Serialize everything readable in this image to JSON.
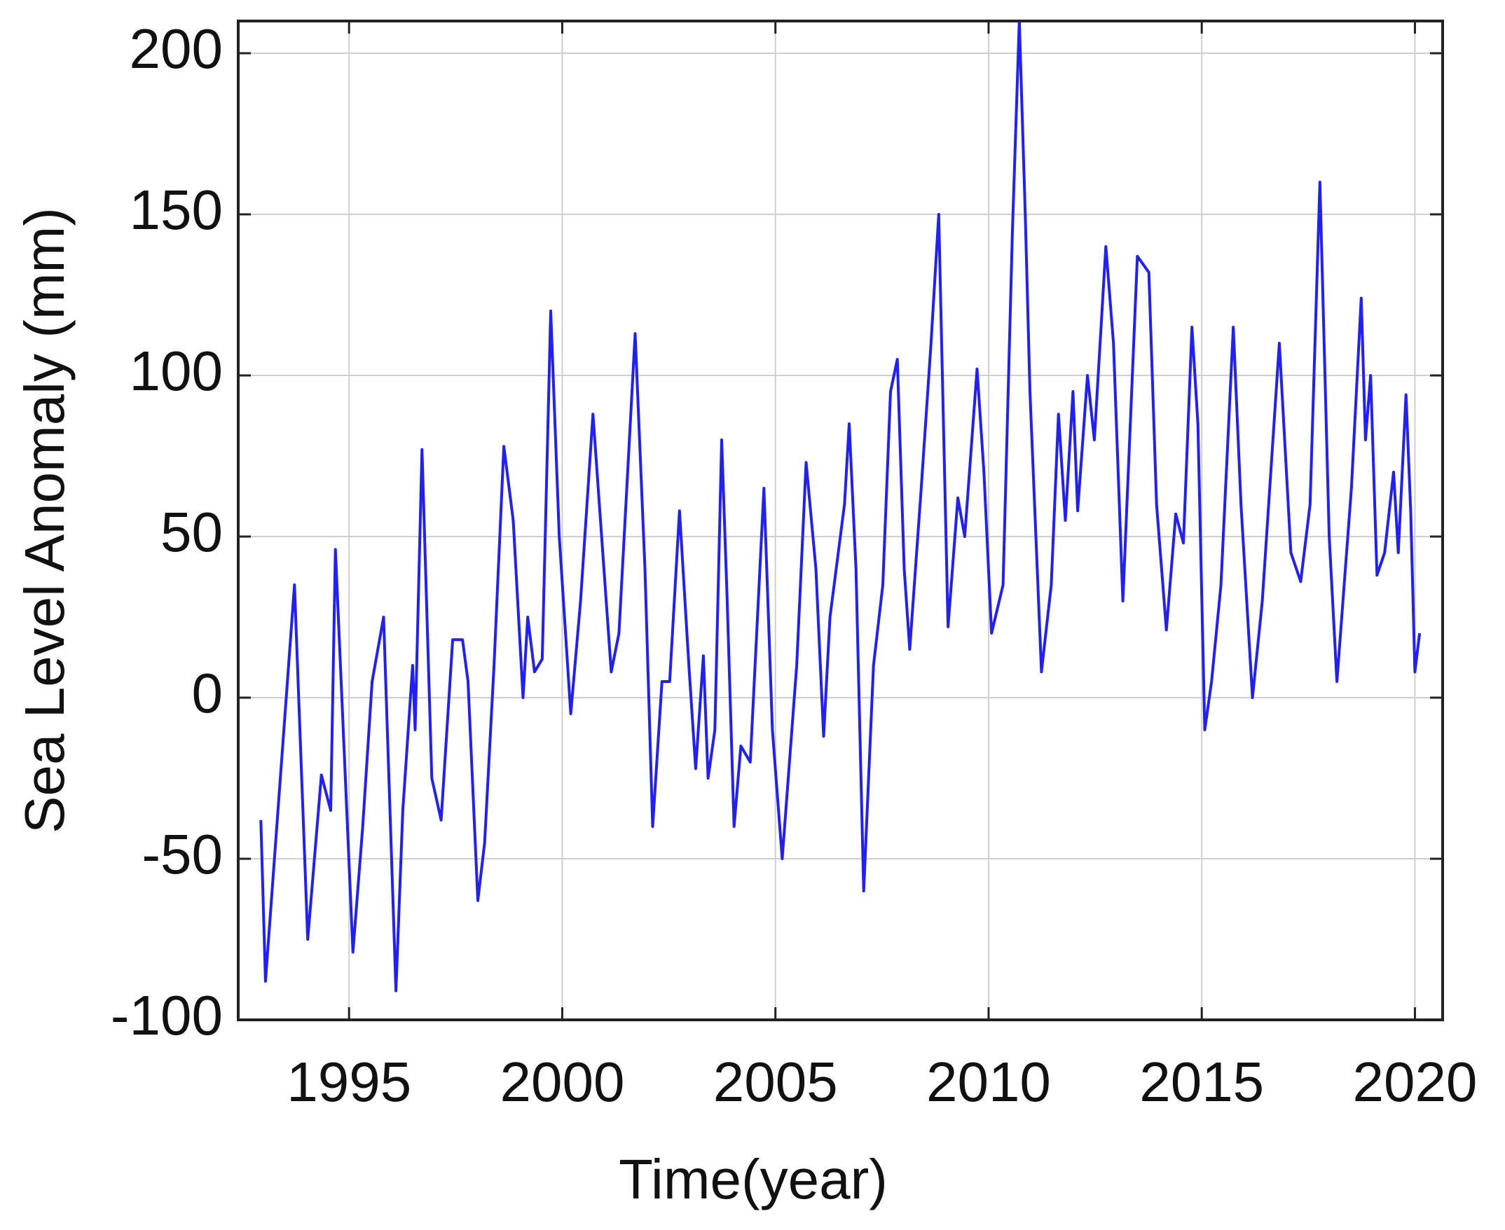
{
  "chart_data": {
    "type": "line",
    "x_label": "Time(year)",
    "y_label": "Sea Level Anomaly (mm)",
    "xlim": [
      1992.4,
      2020.65
    ],
    "ylim": [
      -100,
      210
    ],
    "xticks": [
      1995,
      2000,
      2005,
      2010,
      2015,
      2020
    ],
    "yticks": [
      -100,
      -50,
      0,
      50,
      100,
      150,
      200
    ],
    "grid": true,
    "series": [
      {
        "color": "#1f1fff",
        "x": [
          1992.93,
          1993.04,
          1993.72,
          1994.03,
          1994.35,
          1994.57,
          1994.68,
          1995.09,
          1995.32,
          1995.54,
          1995.81,
          1996.1,
          1996.26,
          1996.49,
          1996.55,
          1996.71,
          1996.94,
          1997.16,
          1997.43,
          1997.66,
          1997.79,
          1998.02,
          1998.18,
          1998.4,
          1998.63,
          1998.85,
          1999.08,
          1999.19,
          1999.35,
          1999.53,
          1999.73,
          1999.93,
          2000.2,
          2000.43,
          2000.72,
          2000.95,
          2001.15,
          2001.33,
          2001.71,
          2001.94,
          2002.12,
          2002.34,
          2002.52,
          2002.75,
          2002.97,
          2003.13,
          2003.31,
          2003.42,
          2003.58,
          2003.74,
          2003.87,
          2004.03,
          2004.19,
          2004.41,
          2004.73,
          2004.93,
          2005.16,
          2005.5,
          2005.72,
          2005.95,
          2006.13,
          2006.28,
          2006.62,
          2006.73,
          2006.89,
          2007.07,
          2007.3,
          2007.52,
          2007.7,
          2007.86,
          2008.02,
          2008.15,
          2008.42,
          2008.65,
          2008.83,
          2009.05,
          2009.28,
          2009.44,
          2009.73,
          2009.89,
          2010.07,
          2010.34,
          2010.56,
          2010.72,
          2010.86,
          2010.97,
          2011.24,
          2011.47,
          2011.64,
          2011.8,
          2011.98,
          2012.09,
          2012.32,
          2012.48,
          2012.75,
          2012.93,
          2013.15,
          2013.49,
          2013.76,
          2013.94,
          2014.17,
          2014.39,
          2014.57,
          2014.77,
          2014.91,
          2015.07,
          2015.23,
          2015.45,
          2015.74,
          2015.92,
          2016.19,
          2016.42,
          2016.82,
          2017.09,
          2017.32,
          2017.54,
          2017.77,
          2017.99,
          2018.17,
          2018.51,
          2018.74,
          2018.84,
          2018.96,
          2019.11,
          2019.29,
          2019.5,
          2019.61,
          2019.79,
          2019.9,
          2020.0,
          2020.11
        ],
        "values": [
          -38,
          -88,
          35,
          -75,
          -24,
          -35,
          46,
          -79,
          -40,
          5,
          25,
          -91,
          -35,
          10,
          -10,
          77,
          -25,
          -38,
          18,
          18,
          5,
          -63,
          -45,
          10,
          78,
          55,
          0,
          25,
          8,
          12,
          120,
          50,
          -5,
          30,
          88,
          45,
          8,
          20,
          113,
          40,
          -40,
          5,
          5,
          58,
          10,
          -22,
          13,
          -25,
          -10,
          80,
          30,
          -40,
          -15,
          -20,
          65,
          -10,
          -50,
          10,
          73,
          40,
          -12,
          25,
          60,
          85,
          40,
          -60,
          10,
          35,
          95,
          105,
          40,
          15,
          65,
          110,
          150,
          22,
          62,
          50,
          102,
          70,
          20,
          35,
          145,
          210,
          150,
          95,
          8,
          35,
          88,
          55,
          95,
          58,
          100,
          80,
          140,
          110,
          30,
          137,
          132,
          60,
          21,
          57,
          48,
          115,
          85,
          -10,
          5,
          35,
          115,
          60,
          0,
          30,
          110,
          45,
          36,
          60,
          160,
          50,
          5,
          65,
          124,
          80,
          100,
          38,
          45,
          70,
          45,
          94,
          58,
          8,
          20
        ]
      }
    ]
  }
}
